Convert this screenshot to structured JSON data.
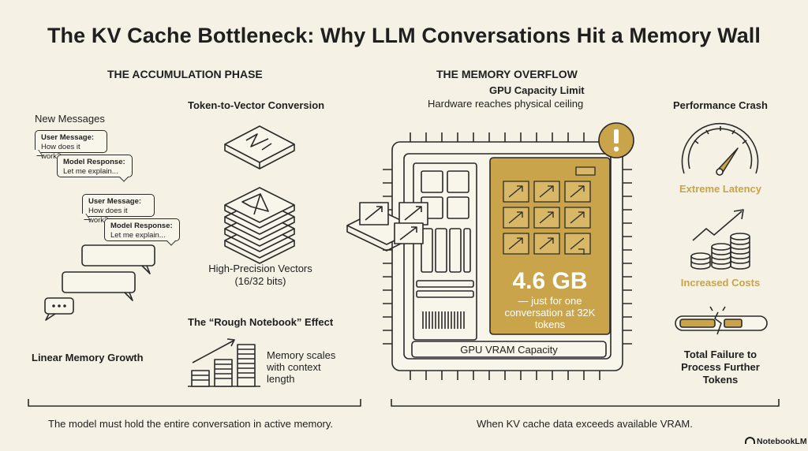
{
  "title": "The KV Cache Bottleneck: Why LLM Conversations Hit a Memory Wall",
  "left": {
    "heading": "THE ACCUMULATION PHASE",
    "new_messages": "New Messages",
    "bubbles": [
      {
        "head": "User Message:",
        "body": "How does it work?"
      },
      {
        "head": "Model Response:",
        "body": "Let me explain..."
      },
      {
        "head": "User Message:",
        "body": "How does it work?"
      },
      {
        "head": "Model Response:",
        "body": "Let me explain..."
      }
    ],
    "token_conversion": "Token-to-Vector Conversion",
    "vectors_label": "High-Precision Vectors",
    "vectors_bits": "(16/32 bits)",
    "rough_notebook": "The “Rough Notebook” Effect",
    "linear_growth": "Linear Memory Growth",
    "memory_scales": "Memory scales with context length",
    "footer": "The model must hold the entire conversation in active memory."
  },
  "right": {
    "heading": "THE MEMORY OVERFLOW",
    "gpu_limit": "GPU Capacity Limit",
    "gpu_limit_sub": "Hardware reaches physical ceiling",
    "memory_value": "4.6 GB",
    "memory_desc": "— just for one conversation at 32K tokens",
    "vram_label": "GPU VRAM Capacity",
    "perf_crash": "Performance Crash",
    "latency": "Extreme Latency",
    "costs": "Increased Costs",
    "failure": "Total Failure to Process Further Tokens",
    "footer": "When KV cache data exceeds available VRAM."
  },
  "brand": "NotebookLM",
  "colors": {
    "background": "#f5f1e4",
    "accent_gold": "#c9a44a",
    "ink": "#2a2a2a"
  }
}
